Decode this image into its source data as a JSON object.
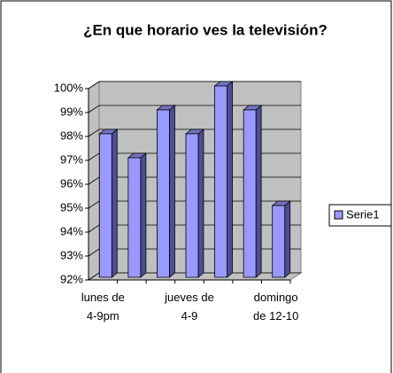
{
  "chart_data": {
    "type": "bar3d",
    "title": "¿En que horario ves la televisión?",
    "categories": [
      "lunes de 4-9pm",
      null,
      null,
      "jueves de 4-9",
      null,
      null,
      "domingo de 12-10"
    ],
    "series": [
      {
        "name": "Serie1",
        "color": "#9999ff",
        "values": [
          98,
          97,
          99,
          98,
          100,
          99,
          95
        ]
      }
    ],
    "ylim": [
      92,
      100
    ],
    "yticks": [
      {
        "value": 92,
        "label": "92%"
      },
      {
        "value": 93,
        "label": "93%"
      },
      {
        "value": 94,
        "label": "94%"
      },
      {
        "value": 95,
        "label": "95%"
      },
      {
        "value": 96,
        "label": "96%"
      },
      {
        "value": 97,
        "label": "97%"
      },
      {
        "value": 98,
        "label": "98%"
      },
      {
        "value": 99,
        "label": "99%"
      },
      {
        "value": 100,
        "label": "100%"
      }
    ],
    "grid": true,
    "legend": "right"
  }
}
